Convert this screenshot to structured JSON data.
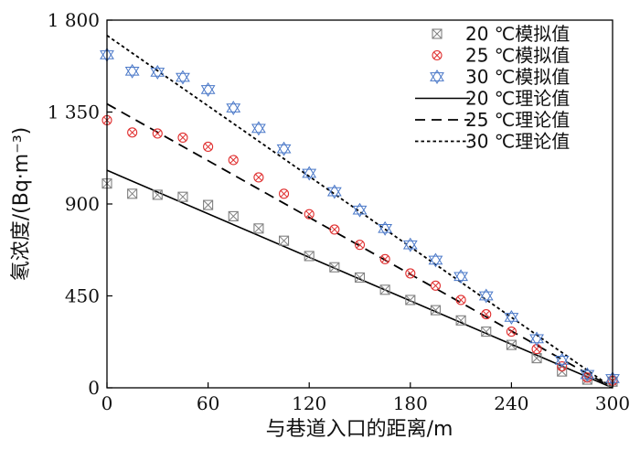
{
  "chart_data": {
    "type": "scatter",
    "title": "",
    "xlabel": "与巷道入口的距离/m",
    "ylabel": "氡浓度/(Bq·m⁻³)",
    "xlim": [
      0,
      300
    ],
    "ylim": [
      0,
      1800
    ],
    "xticks": [
      {
        "value": 0,
        "label": "0"
      },
      {
        "value": 60,
        "label": "60"
      },
      {
        "value": 120,
        "label": "120"
      },
      {
        "value": 180,
        "label": "180"
      },
      {
        "value": 240,
        "label": "240"
      },
      {
        "value": 300,
        "label": "300"
      }
    ],
    "yticks": [
      {
        "value": 0,
        "label": "0"
      },
      {
        "value": 450,
        "label": "450"
      },
      {
        "value": 900,
        "label": "900"
      },
      {
        "value": 1350,
        "label": "1 350"
      },
      {
        "value": 1800,
        "label": "1 800"
      }
    ],
    "grid": false,
    "legend_position": "top-right",
    "simulated": [
      {
        "name": "20 ℃模拟值",
        "marker": "box-x",
        "color": "#808080",
        "x": [
          0,
          15,
          30,
          45,
          60,
          75,
          90,
          105,
          120,
          135,
          150,
          165,
          180,
          195,
          210,
          225,
          240,
          255,
          270,
          285,
          300
        ],
        "y": [
          1000,
          950,
          945,
          935,
          895,
          840,
          780,
          720,
          645,
          590,
          540,
          480,
          430,
          380,
          330,
          275,
          210,
          145,
          80,
          40,
          30
        ]
      },
      {
        "name": "25 ℃模拟值",
        "marker": "circle-x",
        "color": "#e03030",
        "x": [
          0,
          15,
          30,
          45,
          60,
          75,
          90,
          105,
          120,
          135,
          150,
          165,
          180,
          195,
          210,
          225,
          240,
          255,
          270,
          285,
          300
        ],
        "y": [
          1310,
          1250,
          1245,
          1225,
          1180,
          1115,
          1030,
          950,
          850,
          775,
          700,
          630,
          560,
          500,
          430,
          360,
          275,
          190,
          105,
          50,
          35
        ]
      },
      {
        "name": "30 ℃模拟值",
        "marker": "star",
        "color": "#4a78c8",
        "x": [
          0,
          15,
          30,
          45,
          60,
          75,
          90,
          105,
          120,
          135,
          150,
          165,
          180,
          195,
          210,
          225,
          240,
          255,
          270,
          285,
          300
        ],
        "y": [
          1630,
          1550,
          1545,
          1520,
          1460,
          1370,
          1270,
          1170,
          1050,
          960,
          870,
          780,
          700,
          625,
          545,
          450,
          345,
          240,
          135,
          65,
          45
        ]
      }
    ],
    "theoretical": [
      {
        "name": "20 ℃理论值",
        "style": "solid",
        "x": [
          0,
          300
        ],
        "y": [
          1065,
          0
        ]
      },
      {
        "name": "25 ℃理论值",
        "style": "dashed",
        "x": [
          0,
          300
        ],
        "y": [
          1390,
          0
        ]
      },
      {
        "name": "30 ℃理论值",
        "style": "dotted",
        "x": [
          0,
          300
        ],
        "y": [
          1725,
          0
        ]
      }
    ]
  }
}
